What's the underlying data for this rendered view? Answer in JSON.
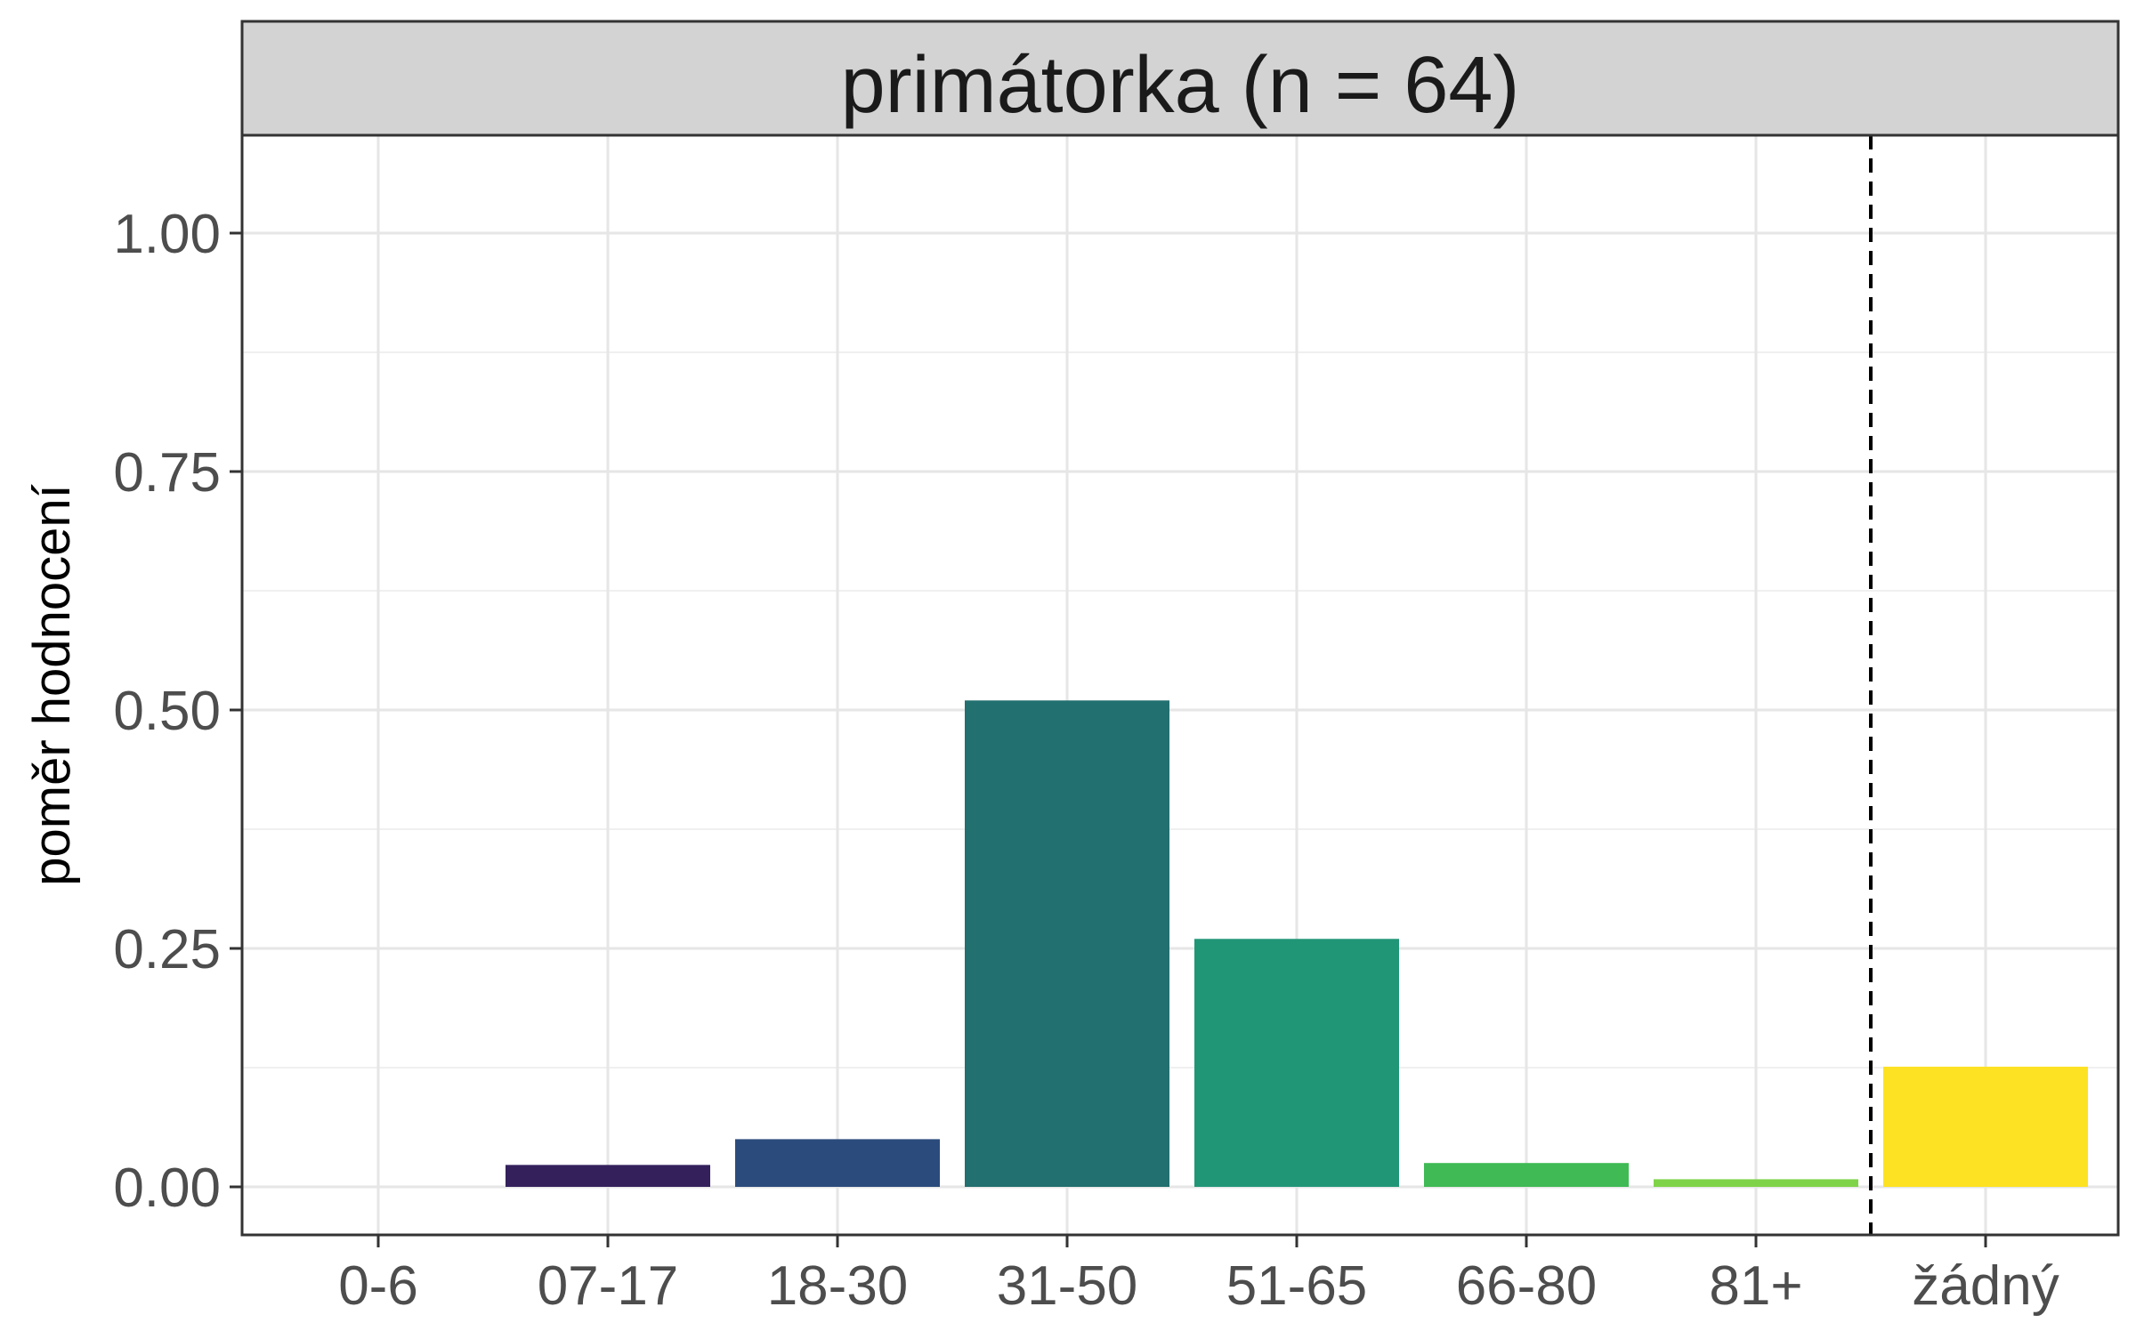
{
  "facet": {
    "title": "primátorka (n = 64)"
  },
  "chart_data": {
    "type": "bar",
    "title": "primátorka (n = 64)",
    "xlabel": "",
    "ylabel": "poměr hodnocení",
    "ylim": [
      0,
      1.1
    ],
    "yticks": [
      0.0,
      0.25,
      0.5,
      0.75,
      1.0
    ],
    "ytick_labels": [
      "0.00",
      "0.25",
      "0.50",
      "0.75",
      "1.00"
    ],
    "grid": true,
    "categories": [
      "0-6",
      "07-17",
      "18-30",
      "31-50",
      "51-65",
      "66-80",
      "81+",
      "žádný"
    ],
    "values": [
      0.0,
      0.023,
      0.05,
      0.51,
      0.26,
      0.025,
      0.008,
      0.126
    ],
    "colors": [
      "#440154",
      "#34215c",
      "#2b4b7c",
      "#22706f",
      "#219676",
      "#3fba55",
      "#7fd348",
      "#fde223"
    ],
    "separator_after_category": "81+",
    "separator_style": "dashed"
  }
}
